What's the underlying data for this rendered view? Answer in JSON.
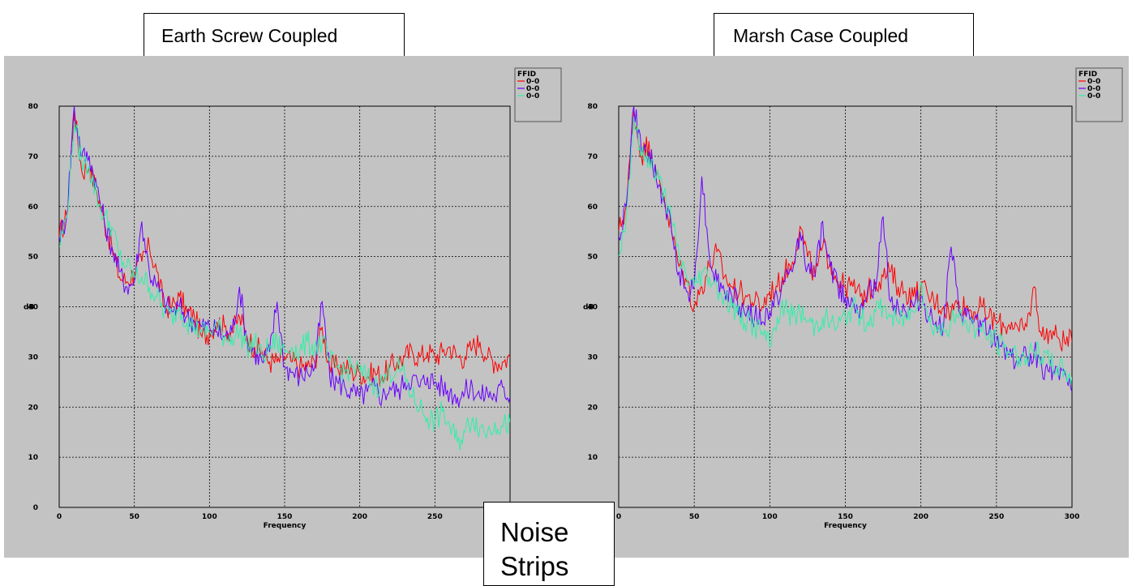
{
  "captions": {
    "left": "Earth Screw Coupled",
    "right": "Marsh Case Coupled",
    "noise_line1": "Noise",
    "noise_line2": "Strips"
  },
  "chart_data": [
    {
      "type": "line",
      "title": "Earth Screw Coupled",
      "xlabel": "Frequency",
      "ylabel": "dB",
      "xlim": [
        0,
        300
      ],
      "ylim": [
        0,
        80
      ],
      "x_ticks": [
        0,
        50,
        100,
        150,
        200,
        250
      ],
      "y_ticks": [
        0,
        10,
        20,
        30,
        40,
        50,
        60,
        70,
        80
      ],
      "grid": true,
      "legend": {
        "title": "FFID",
        "position": "top-right",
        "entries": [
          "0-0",
          "0-0",
          "0-0"
        ]
      },
      "x": [
        0,
        5,
        10,
        15,
        20,
        25,
        30,
        35,
        40,
        45,
        50,
        55,
        60,
        65,
        70,
        75,
        80,
        85,
        90,
        95,
        100,
        105,
        110,
        115,
        120,
        125,
        130,
        135,
        140,
        145,
        150,
        155,
        160,
        165,
        170,
        175,
        180,
        185,
        190,
        195,
        200,
        205,
        210,
        215,
        220,
        225,
        230,
        235,
        240,
        245,
        250,
        255,
        260,
        265,
        270,
        275,
        280,
        285,
        290,
        295,
        300
      ],
      "series": [
        {
          "color": "#ff0000",
          "values": [
            54,
            58,
            79,
            67,
            68,
            63,
            57,
            52,
            46,
            45,
            47,
            49,
            52,
            47,
            40,
            40,
            42,
            39,
            38,
            34,
            35,
            37,
            36,
            35,
            38,
            34,
            32,
            31,
            29,
            29,
            30,
            29,
            28,
            28,
            29,
            36,
            28,
            28,
            28,
            27,
            27,
            26,
            27,
            26,
            28,
            29,
            30,
            31,
            30,
            31,
            30,
            31,
            32,
            30,
            30,
            32,
            33,
            30,
            29,
            29,
            30
          ]
        },
        {
          "color": "#6a00ff",
          "values": [
            54,
            58,
            80,
            70,
            70,
            64,
            57,
            52,
            47,
            44,
            45,
            57,
            47,
            44,
            41,
            39,
            40,
            38,
            37,
            36,
            36,
            35,
            34,
            35,
            44,
            33,
            31,
            29,
            31,
            41,
            28,
            27,
            26,
            27,
            28,
            41,
            26,
            25,
            24,
            23,
            22,
            23,
            24,
            22,
            24,
            23,
            25,
            26,
            24,
            26,
            25,
            24,
            23,
            22,
            23,
            24,
            22,
            23,
            22,
            24,
            22
          ]
        },
        {
          "color": "#2ff0a8",
          "values": [
            52,
            58,
            77,
            69,
            68,
            62,
            58,
            56,
            50,
            48,
            46,
            46,
            44,
            42,
            39,
            38,
            40,
            37,
            36,
            35,
            35,
            36,
            34,
            34,
            35,
            32,
            33,
            30,
            32,
            33,
            31,
            32,
            31,
            33,
            32,
            33,
            29,
            28,
            27,
            28,
            27,
            26,
            24,
            25,
            27,
            28,
            26,
            22,
            20,
            18,
            17,
            19,
            16,
            13,
            15,
            18,
            16,
            15,
            17,
            16,
            17
          ]
        }
      ]
    },
    {
      "type": "line",
      "title": "Marsh Case Coupled",
      "xlabel": "Frequency",
      "ylabel": "dB",
      "xlim": [
        0,
        300
      ],
      "ylim": [
        0,
        80
      ],
      "x_ticks": [
        0,
        50,
        100,
        150,
        200,
        250,
        300
      ],
      "y_ticks": [
        0,
        10,
        20,
        30,
        40,
        50,
        60,
        70,
        80
      ],
      "grid": true,
      "legend": {
        "title": "FFID",
        "position": "top-right",
        "entries": [
          "0-0",
          "0-0",
          "0-0"
        ]
      },
      "x": [
        0,
        5,
        10,
        15,
        20,
        25,
        30,
        35,
        40,
        45,
        50,
        55,
        60,
        65,
        70,
        75,
        80,
        85,
        90,
        95,
        100,
        105,
        110,
        115,
        120,
        125,
        130,
        135,
        140,
        145,
        150,
        155,
        160,
        165,
        170,
        175,
        180,
        185,
        190,
        195,
        200,
        205,
        210,
        215,
        220,
        225,
        230,
        235,
        240,
        245,
        250,
        255,
        260,
        265,
        270,
        275,
        280,
        285,
        290,
        295,
        300
      ],
      "series": [
        {
          "color": "#ff0000",
          "values": [
            55,
            60,
            79,
            70,
            73,
            66,
            62,
            55,
            48,
            45,
            40,
            44,
            48,
            51,
            46,
            44,
            43,
            42,
            41,
            40,
            43,
            44,
            47,
            49,
            56,
            50,
            46,
            52,
            49,
            45,
            44,
            44,
            42,
            43,
            45,
            46,
            47,
            44,
            43,
            42,
            44,
            42,
            41,
            40,
            39,
            41,
            40,
            39,
            40,
            38,
            37,
            36,
            37,
            35,
            36,
            44,
            34,
            35,
            34,
            33,
            33
          ]
        },
        {
          "color": "#6a00ff",
          "values": [
            54,
            60,
            80,
            71,
            71,
            65,
            61,
            55,
            47,
            43,
            44,
            66,
            50,
            45,
            43,
            42,
            40,
            39,
            38,
            37,
            39,
            42,
            45,
            47,
            55,
            48,
            46,
            57,
            48,
            44,
            42,
            41,
            40,
            44,
            43,
            58,
            41,
            40,
            39,
            40,
            42,
            38,
            37,
            36,
            52,
            39,
            38,
            37,
            36,
            35,
            33,
            32,
            30,
            29,
            30,
            31,
            28,
            27,
            28,
            27,
            23
          ]
        },
        {
          "color": "#2ff0a8",
          "values": [
            50,
            58,
            78,
            70,
            70,
            66,
            63,
            57,
            50,
            46,
            44,
            47,
            46,
            44,
            42,
            40,
            38,
            37,
            36,
            35,
            32,
            38,
            40,
            38,
            39,
            37,
            36,
            38,
            37,
            36,
            38,
            40,
            38,
            37,
            39,
            40,
            38,
            37,
            38,
            39,
            45,
            37,
            36,
            35,
            37,
            38,
            37,
            36,
            35,
            34,
            33,
            32,
            31,
            30,
            30,
            31,
            30,
            29,
            28,
            27,
            26
          ]
        }
      ]
    }
  ]
}
